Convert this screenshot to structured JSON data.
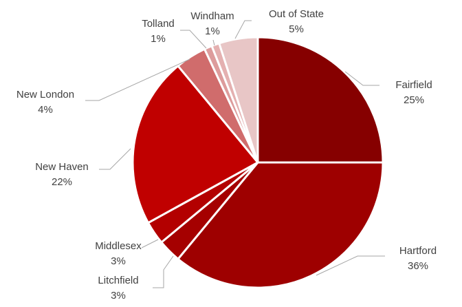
{
  "chart_data": {
    "type": "pie",
    "title": "",
    "legend": "none",
    "start_angle_deg": 0,
    "direction": "clockwise",
    "slices": [
      {
        "label": "Fairfield",
        "value": 25,
        "display": "25%",
        "color": "#860000"
      },
      {
        "label": "Hartford",
        "value": 36,
        "display": "36%",
        "color": "#9e0000"
      },
      {
        "label": "Litchfield",
        "value": 3,
        "display": "3%",
        "color": "#a50000"
      },
      {
        "label": "Middlesex",
        "value": 3,
        "display": "3%",
        "color": "#b30000"
      },
      {
        "label": "New Haven",
        "value": 22,
        "display": "22%",
        "color": "#c00000"
      },
      {
        "label": "New London",
        "value": 4,
        "display": "4%",
        "color": "#d06c6c"
      },
      {
        "label": "Tolland",
        "value": 1,
        "display": "1%",
        "color": "#dd9c9c"
      },
      {
        "label": "Windham",
        "value": 1,
        "display": "1%",
        "color": "#e4b0b0"
      },
      {
        "label": "Out of State",
        "value": 5,
        "display": "5%",
        "color": "#e8c6c6"
      }
    ]
  }
}
